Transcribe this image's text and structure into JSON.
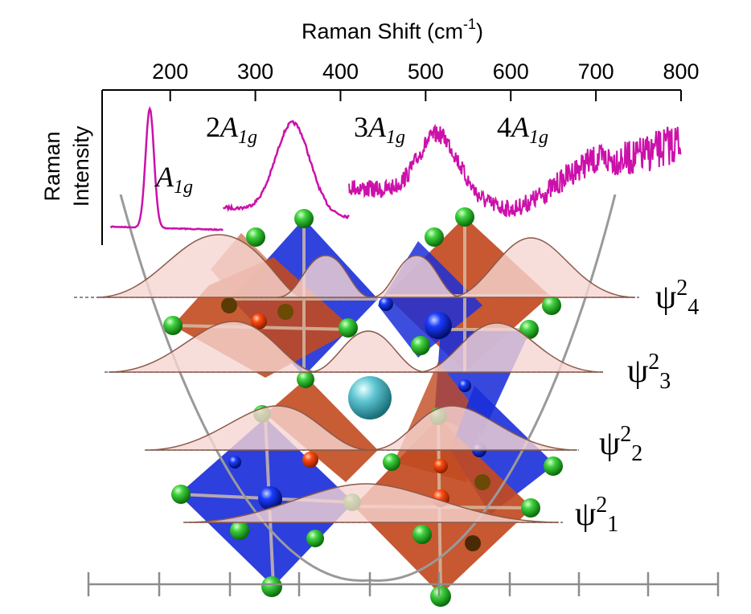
{
  "figure": {
    "x_axis": {
      "title": "Raman Shift (cm",
      "title_sup": "-1",
      "title_end": ")",
      "ticks": [
        "200",
        "300",
        "400",
        "500",
        "600",
        "700",
        "800"
      ],
      "range": [
        120,
        800
      ]
    },
    "y_axis": {
      "line1": "Raman",
      "line2": "Intensity"
    },
    "peaks": [
      {
        "id": "a1g",
        "coef": "",
        "base": "A",
        "sub": "1g",
        "shift_cm": 176,
        "segment": [
          130,
          262
        ]
      },
      {
        "id": "2a1g",
        "coef": "2",
        "base": "A",
        "sub": "1g",
        "shift_cm": 344,
        "segment": [
          262,
          410
        ]
      },
      {
        "id": "3a1g",
        "coef": "3",
        "base": "A",
        "sub": "1g",
        "shift_cm": 515,
        "segment": [
          410,
          600
        ]
      },
      {
        "id": "4a1g",
        "coef": "4",
        "base": "A",
        "sub": "1g",
        "shift_cm": 690,
        "segment": [
          600,
          800
        ]
      }
    ],
    "wavefunctions": [
      {
        "label": "ψ",
        "power": "2",
        "index": "4"
      },
      {
        "label": "ψ",
        "power": "2",
        "index": "3"
      },
      {
        "label": "ψ",
        "power": "2",
        "index": "2"
      },
      {
        "label": "ψ",
        "power": "2",
        "index": "1"
      }
    ],
    "colors": {
      "spectrum": "#cc11aa",
      "octahedron_blue": "#1b2fd9",
      "octahedron_orange": "#c24a1f",
      "halide_atom": "#22b322",
      "metal_atom_orange": "#ff4400",
      "metal_atom_blue": "#1133ee",
      "cation_atom": "#4fc0cc",
      "wavefunction_fill": "#f6d6d2",
      "potential_curve": "#9a9a9a"
    }
  }
}
